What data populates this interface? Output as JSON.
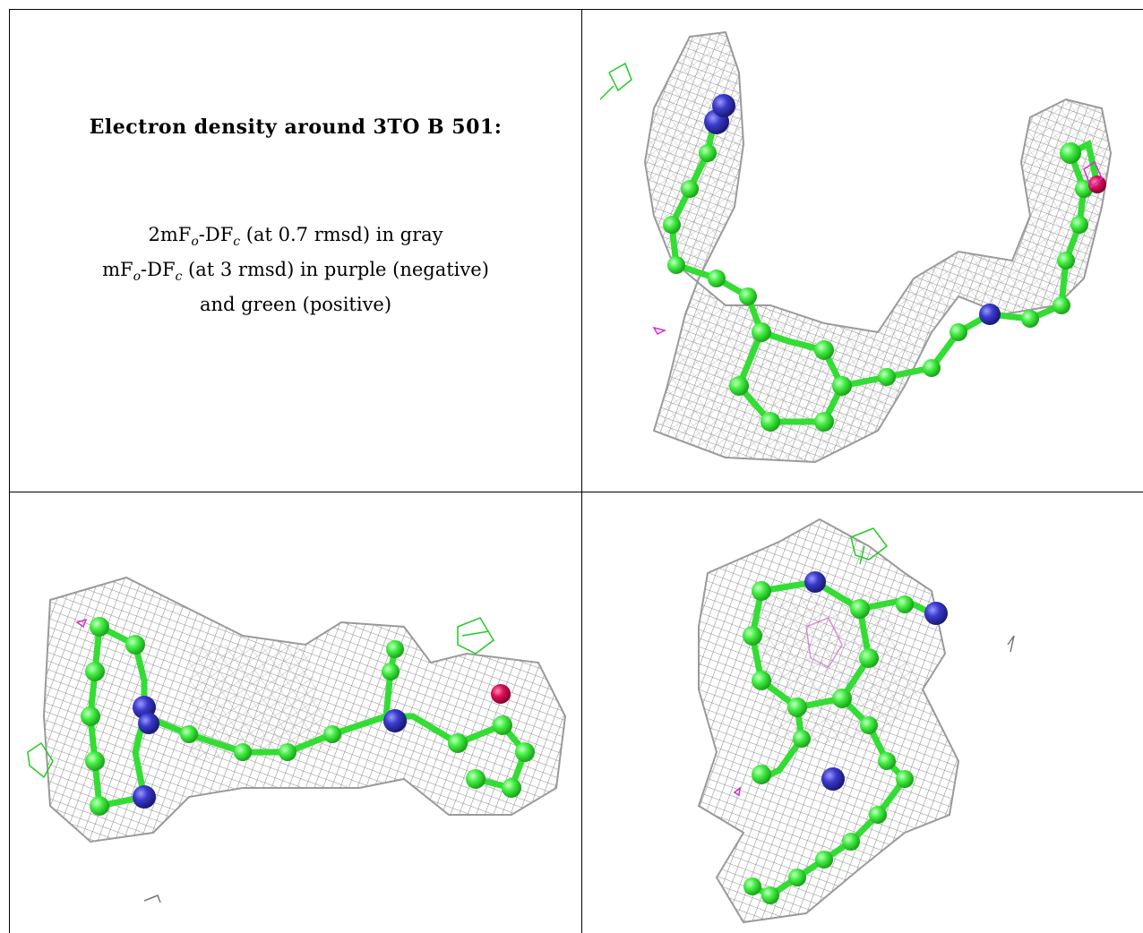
{
  "title": "Electron density around 3TO B 501:",
  "legend": {
    "line1_prefix": "2mF",
    "line1_sub1": "o",
    "line1_mid": "-DF",
    "line1_sub2": "c",
    "line1_suffix": " (at 0.7 rmsd) in gray",
    "line2_prefix": "mF",
    "line2_sub1": "o",
    "line2_mid": "-DF",
    "line2_sub2": "c",
    "line2_suffix": " (at 3 rmsd) in purple (negative)",
    "line3": "and green (positive)"
  },
  "colors": {
    "mesh": "#9a9a9a",
    "carbon": "#33ee33",
    "nitrogen": "#3333bb",
    "oxygen": "#dd1155",
    "difference_negative": "#cc33cc",
    "difference_positive": "#22cc22"
  },
  "views": [
    "density-view-1",
    "density-view-2",
    "density-view-3"
  ]
}
